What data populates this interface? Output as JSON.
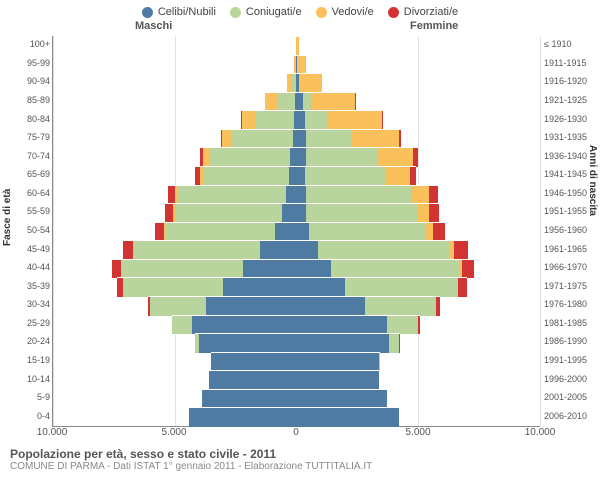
{
  "colors": {
    "celibi": "#4f7ba3",
    "coniugati": "#b9d49c",
    "vedovi": "#f9c05b",
    "divorziati": "#d23434",
    "grid": "#e0e0e0",
    "axis": "#888888",
    "center": "#bbbbbb",
    "bg": "#ffffff"
  },
  "legend": [
    {
      "label": "Celibi/Nubili",
      "colorKey": "celibi"
    },
    {
      "label": "Coniugati/e",
      "colorKey": "coniugati"
    },
    {
      "label": "Vedovi/e",
      "colorKey": "vedovi"
    },
    {
      "label": "Divorziati/e",
      "colorKey": "divorziati"
    }
  ],
  "headers": {
    "male": "Maschi",
    "female": "Femmine"
  },
  "axisTitles": {
    "left": "Fasce di età",
    "right": "Anni di nascita"
  },
  "title": "Popolazione per età, sesso e stato civile - 2011",
  "subtitle": "COMUNE DI PARMA - Dati ISTAT 1° gennaio 2011 - Elaborazione TUTTITALIA.IT",
  "xMax": 10000,
  "xTicks": [
    {
      "v": -10000,
      "label": "10.000"
    },
    {
      "v": -5000,
      "label": "5.000"
    },
    {
      "v": 0,
      "label": "0"
    },
    {
      "v": 5000,
      "label": "5.000"
    },
    {
      "v": 10000,
      "label": "10.000"
    }
  ],
  "rows": [
    {
      "age": "100+",
      "birth": "≤ 1910",
      "m": {
        "cel": 0,
        "con": 0,
        "ved": 20,
        "div": 0
      },
      "f": {
        "cel": 5,
        "con": 0,
        "ved": 80,
        "div": 0
      }
    },
    {
      "age": "95-99",
      "birth": "1911-1915",
      "m": {
        "cel": 10,
        "con": 20,
        "ved": 60,
        "div": 0
      },
      "f": {
        "cel": 30,
        "con": 10,
        "ved": 350,
        "div": 0
      }
    },
    {
      "age": "90-94",
      "birth": "1916-1920",
      "m": {
        "cel": 30,
        "con": 150,
        "ved": 200,
        "div": 0
      },
      "f": {
        "cel": 100,
        "con": 50,
        "ved": 900,
        "div": 0
      }
    },
    {
      "age": "85-89",
      "birth": "1921-1925",
      "m": {
        "cel": 80,
        "con": 700,
        "ved": 500,
        "div": 10
      },
      "f": {
        "cel": 250,
        "con": 350,
        "ved": 1800,
        "div": 20
      }
    },
    {
      "age": "80-84",
      "birth": "1926-1930",
      "m": {
        "cel": 100,
        "con": 1600,
        "ved": 550,
        "div": 30
      },
      "f": {
        "cel": 350,
        "con": 950,
        "ved": 2200,
        "div": 50
      }
    },
    {
      "age": "75-79",
      "birth": "1931-1935",
      "m": {
        "cel": 150,
        "con": 2500,
        "ved": 400,
        "div": 60
      },
      "f": {
        "cel": 400,
        "con": 1900,
        "ved": 1900,
        "div": 100
      }
    },
    {
      "age": "70-74",
      "birth": "1936-1940",
      "m": {
        "cel": 250,
        "con": 3300,
        "ved": 300,
        "div": 120
      },
      "f": {
        "cel": 400,
        "con": 2900,
        "ved": 1500,
        "div": 180
      }
    },
    {
      "age": "65-69",
      "birth": "1941-1945",
      "m": {
        "cel": 300,
        "con": 3500,
        "ved": 180,
        "div": 180
      },
      "f": {
        "cel": 350,
        "con": 3300,
        "ved": 1000,
        "div": 250
      }
    },
    {
      "age": "60-64",
      "birth": "1946-1950",
      "m": {
        "cel": 450,
        "con": 4400,
        "ved": 130,
        "div": 280
      },
      "f": {
        "cel": 400,
        "con": 4300,
        "ved": 750,
        "div": 350
      }
    },
    {
      "age": "55-59",
      "birth": "1951-1955",
      "m": {
        "cel": 600,
        "con": 4400,
        "ved": 80,
        "div": 320
      },
      "f": {
        "cel": 400,
        "con": 4600,
        "ved": 450,
        "div": 420
      }
    },
    {
      "age": "50-54",
      "birth": "1956-1960",
      "m": {
        "cel": 900,
        "con": 4500,
        "ved": 50,
        "div": 350
      },
      "f": {
        "cel": 500,
        "con": 4800,
        "ved": 300,
        "div": 480
      }
    },
    {
      "age": "45-49",
      "birth": "1961-1965",
      "m": {
        "cel": 1500,
        "con": 5200,
        "ved": 30,
        "div": 400
      },
      "f": {
        "cel": 900,
        "con": 5400,
        "ved": 180,
        "div": 550
      }
    },
    {
      "age": "40-44",
      "birth": "1966-1970",
      "m": {
        "cel": 2200,
        "con": 5000,
        "ved": 20,
        "div": 350
      },
      "f": {
        "cel": 1400,
        "con": 5300,
        "ved": 100,
        "div": 500
      }
    },
    {
      "age": "35-39",
      "birth": "1971-1975",
      "m": {
        "cel": 3000,
        "con": 4100,
        "ved": 10,
        "div": 250
      },
      "f": {
        "cel": 2000,
        "con": 4600,
        "ved": 50,
        "div": 350
      }
    },
    {
      "age": "30-34",
      "birth": "1976-1980",
      "m": {
        "cel": 3700,
        "con": 2300,
        "ved": 5,
        "div": 100
      },
      "f": {
        "cel": 2800,
        "con": 2900,
        "ved": 20,
        "div": 180
      }
    },
    {
      "age": "25-29",
      "birth": "1981-1985",
      "m": {
        "cel": 4300,
        "con": 800,
        "ved": 0,
        "div": 30
      },
      "f": {
        "cel": 3700,
        "con": 1300,
        "ved": 10,
        "div": 60
      }
    },
    {
      "age": "20-24",
      "birth": "1986-1990",
      "m": {
        "cel": 4000,
        "con": 150,
        "ved": 0,
        "div": 5
      },
      "f": {
        "cel": 3800,
        "con": 400,
        "ved": 0,
        "div": 15
      }
    },
    {
      "age": "15-19",
      "birth": "1991-1995",
      "m": {
        "cel": 3500,
        "con": 10,
        "ved": 0,
        "div": 0
      },
      "f": {
        "cel": 3400,
        "con": 40,
        "ved": 0,
        "div": 0
      }
    },
    {
      "age": "10-14",
      "birth": "1996-2000",
      "m": {
        "cel": 3600,
        "con": 0,
        "ved": 0,
        "div": 0
      },
      "f": {
        "cel": 3400,
        "con": 0,
        "ved": 0,
        "div": 0
      }
    },
    {
      "age": "5-9",
      "birth": "2001-2005",
      "m": {
        "cel": 3900,
        "con": 0,
        "ved": 0,
        "div": 0
      },
      "f": {
        "cel": 3700,
        "con": 0,
        "ved": 0,
        "div": 0
      }
    },
    {
      "age": "0-4",
      "birth": "2006-2010",
      "m": {
        "cel": 4400,
        "con": 0,
        "ved": 0,
        "div": 0
      },
      "f": {
        "cel": 4200,
        "con": 0,
        "ved": 0,
        "div": 0
      }
    }
  ]
}
